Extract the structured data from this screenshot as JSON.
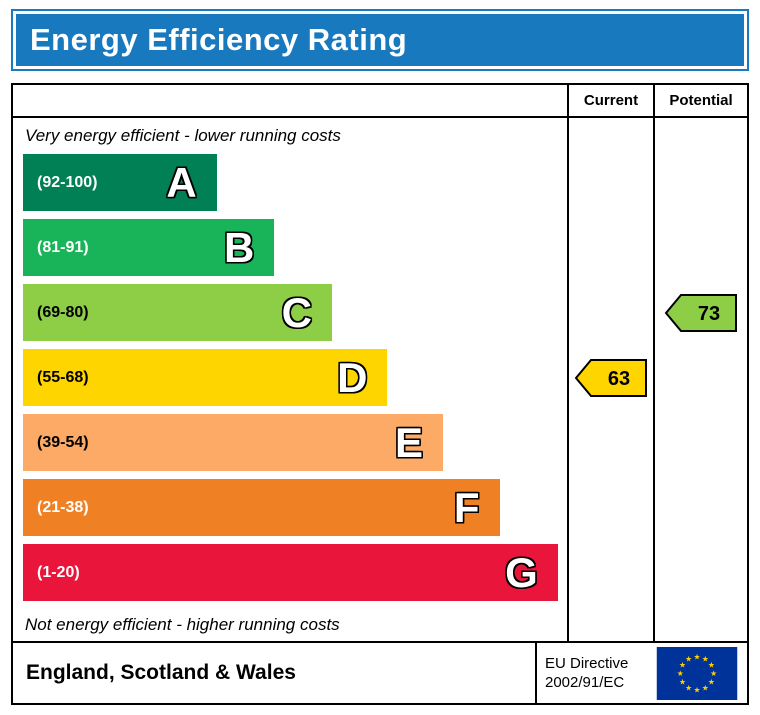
{
  "title": "Energy Efficiency Rating",
  "columns": {
    "current": "Current",
    "potential": "Potential"
  },
  "captions": {
    "top": "Very energy efficient - lower running costs",
    "bottom": "Not energy efficient - higher running costs"
  },
  "bands": [
    {
      "letter": "A",
      "range": "(92-100)",
      "color": "#008054",
      "width_pct": 35.6,
      "label_color": "#ffffff"
    },
    {
      "letter": "B",
      "range": "(81-91)",
      "color": "#19b459",
      "width_pct": 46.2,
      "label_color": "#ffffff"
    },
    {
      "letter": "C",
      "range": "(69-80)",
      "color": "#8dce46",
      "width_pct": 56.8,
      "label_color": "#000000"
    },
    {
      "letter": "D",
      "range": "(55-68)",
      "color": "#ffd500",
      "width_pct": 67.0,
      "label_color": "#000000"
    },
    {
      "letter": "E",
      "range": "(39-54)",
      "color": "#fcaa65",
      "width_pct": 77.2,
      "label_color": "#000000"
    },
    {
      "letter": "F",
      "range": "(21-38)",
      "color": "#ef8023",
      "width_pct": 87.6,
      "label_color": "#ffffff"
    },
    {
      "letter": "G",
      "range": "(1-20)",
      "color": "#e9153b",
      "width_pct": 98.3,
      "label_color": "#ffffff"
    }
  ],
  "ratings": {
    "current": {
      "value": "63",
      "band": "D"
    },
    "potential": {
      "value": "73",
      "band": "C"
    }
  },
  "footer": {
    "region": "England, Scotland & Wales",
    "directive_line1": "EU Directive",
    "directive_line2": "2002/91/EC"
  },
  "colors": {
    "header_bg": "#1879bf",
    "border": "#000000",
    "eu_flag_bg": "#003399",
    "eu_star": "#ffcc00"
  },
  "chart_data": {
    "type": "bar",
    "title": "Energy Efficiency Rating",
    "categories": [
      "A (92-100)",
      "B (81-91)",
      "C (69-80)",
      "D (55-68)",
      "E (39-54)",
      "F (21-38)",
      "G (1-20)"
    ],
    "band_colors": [
      "#008054",
      "#19b459",
      "#8dce46",
      "#ffd500",
      "#fcaa65",
      "#ef8023",
      "#e9153b"
    ],
    "series": [
      {
        "name": "Current",
        "value": 63,
        "band": "D"
      },
      {
        "name": "Potential",
        "value": 73,
        "band": "C"
      }
    ],
    "xlabel": "",
    "ylabel": "",
    "annotations": [
      "Very energy efficient - lower running costs",
      "Not energy efficient - higher running costs",
      "England, Scotland & Wales",
      "EU Directive 2002/91/EC"
    ]
  }
}
